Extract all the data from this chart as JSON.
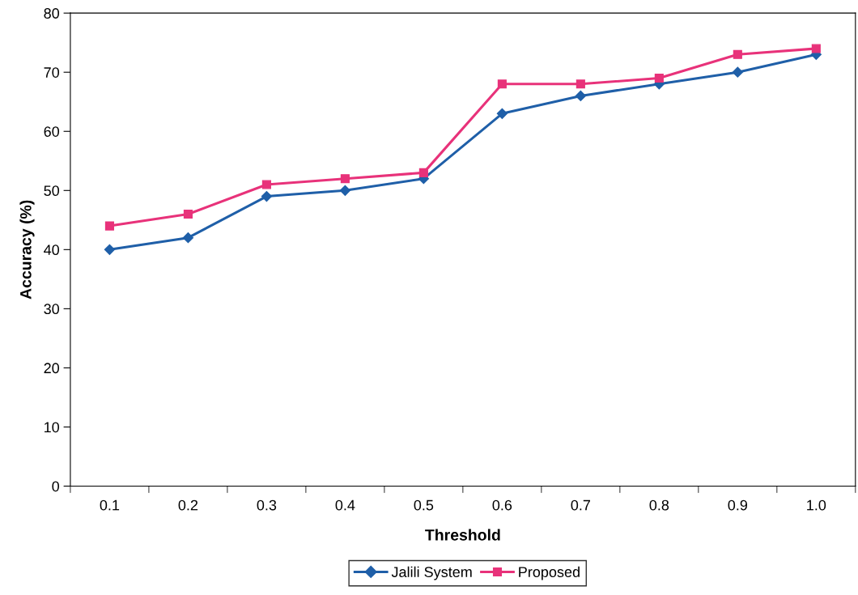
{
  "chart_data": {
    "type": "line",
    "xlabel": "Threshold",
    "ylabel": "Accuracy (%)",
    "categories": [
      "0.1",
      "0.2",
      "0.3",
      "0.4",
      "0.5",
      "0.6",
      "0.7",
      "0.8",
      "0.9",
      "1.0"
    ],
    "series": [
      {
        "name": "Jalili System",
        "color": "#1f5fa8",
        "marker": "diamond",
        "values": [
          40,
          42,
          49,
          50,
          52,
          63,
          66,
          68,
          70,
          73
        ]
      },
      {
        "name": "Proposed",
        "color": "#e8327a",
        "marker": "square",
        "values": [
          44,
          46,
          51,
          52,
          53,
          68,
          68,
          69,
          73,
          74
        ]
      }
    ],
    "ylim": [
      0,
      80
    ],
    "yticks": [
      0,
      10,
      20,
      30,
      40,
      50,
      60,
      70,
      80
    ],
    "grid": false,
    "legend": "bottom",
    "line_style": "solid"
  }
}
